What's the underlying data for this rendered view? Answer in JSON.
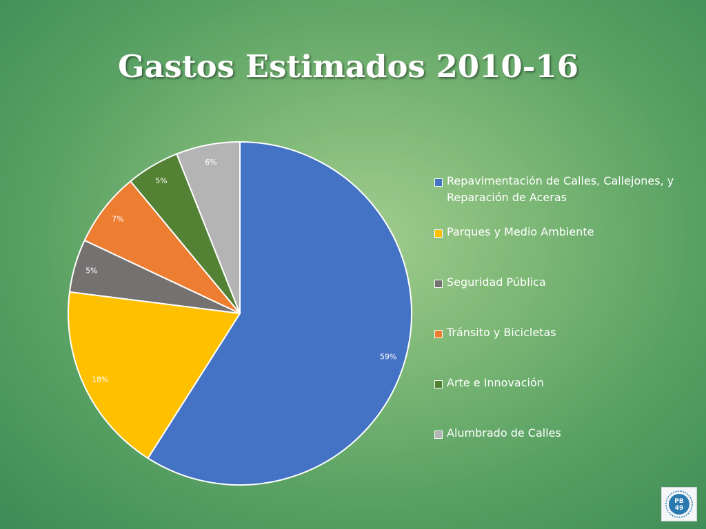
{
  "slide": {
    "title": "Gastos Estimados 2010-16"
  },
  "chart_data": {
    "type": "pie",
    "title": "Gastos Estimados 2010-16",
    "legend_position": "right",
    "start_angle_deg": 0,
    "direction": "clockwise",
    "slices": [
      {
        "label": "Repavimentación de Calles, Callejones, y Reparación de Aceras",
        "value": 59,
        "display": "59%",
        "color": "#4472c4"
      },
      {
        "label": "Parques y Medio Ambiente",
        "value": 18,
        "display": "18%",
        "color": "#ffc000"
      },
      {
        "label": "Seguridad Pública",
        "value": 5,
        "display": "5%",
        "color": "#767171"
      },
      {
        "label": "Tránsito y Bicicletas",
        "value": 7,
        "display": "7%",
        "color": "#ed7d31"
      },
      {
        "label": "Arte e Innovación",
        "value": 5,
        "display": "5%",
        "color": "#548235"
      },
      {
        "label": "Alumbrado de Calles",
        "value": 6,
        "display": "6%",
        "color": "#b4b4b4"
      }
    ]
  },
  "logo": {
    "icon": "pb49-logo",
    "text": "PB 49"
  }
}
